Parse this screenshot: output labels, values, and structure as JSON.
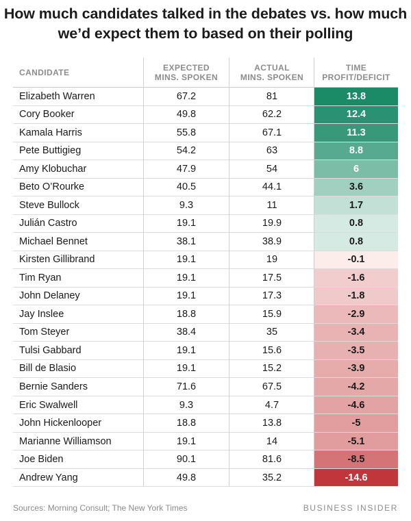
{
  "title": "How much candidates talked in the debates vs. how much we’d expect them to based on their polling",
  "source": "Sources: Morning Consult; The New York Times",
  "brand": "BUSINESS INSIDER",
  "columns": {
    "candidate": "CANDIDATE",
    "expected": [
      "EXPECTED",
      "MINS. SPOKEN"
    ],
    "actual": [
      "ACTUAL",
      "MINS. SPOKEN"
    ],
    "diff": [
      "TIME",
      "PROFIT/DEFICIT"
    ]
  },
  "colors": {
    "positive_strong": "#1a8a67",
    "positive_weak": "#eef7f3",
    "negative_weak": "#fdf1ef",
    "negative_strong": "#c0363b"
  },
  "chart_data": {
    "type": "table",
    "title": "How much candidates talked in the debates vs. how much we’d expect them to based on their polling",
    "columns": [
      "CANDIDATE",
      "EXPECTED MINS. SPOKEN",
      "ACTUAL MINS. SPOKEN",
      "TIME PROFIT/DEFICIT"
    ],
    "rows": [
      {
        "candidate": "Elizabeth Warren",
        "expected": "67.2",
        "actual": "81",
        "diff": "13.8"
      },
      {
        "candidate": "Cory Booker",
        "expected": "49.8",
        "actual": "62.2",
        "diff": "12.4"
      },
      {
        "candidate": "Kamala Harris",
        "expected": "55.8",
        "actual": "67.1",
        "diff": "11.3"
      },
      {
        "candidate": "Pete Buttigieg",
        "expected": "54.2",
        "actual": "63",
        "diff": "8.8"
      },
      {
        "candidate": "Amy Klobuchar",
        "expected": "47.9",
        "actual": "54",
        "diff": "6"
      },
      {
        "candidate": "Beto O’Rourke",
        "expected": "40.5",
        "actual": "44.1",
        "diff": "3.6"
      },
      {
        "candidate": "Steve Bullock",
        "expected": "9.3",
        "actual": "11",
        "diff": "1.7"
      },
      {
        "candidate": "Julián Castro",
        "expected": "19.1",
        "actual": "19.9",
        "diff": "0.8"
      },
      {
        "candidate": "Michael Bennet",
        "expected": "38.1",
        "actual": "38.9",
        "diff": "0.8"
      },
      {
        "candidate": "Kirsten Gillibrand",
        "expected": "19.1",
        "actual": "19",
        "diff": "-0.1"
      },
      {
        "candidate": "Tim Ryan",
        "expected": "19.1",
        "actual": "17.5",
        "diff": "-1.6"
      },
      {
        "candidate": "John Delaney",
        "expected": "19.1",
        "actual": "17.3",
        "diff": "-1.8"
      },
      {
        "candidate": "Jay Inslee",
        "expected": "18.8",
        "actual": "15.9",
        "diff": "-2.9"
      },
      {
        "candidate": "Tom Steyer",
        "expected": "38.4",
        "actual": "35",
        "diff": "-3.4"
      },
      {
        "candidate": "Tulsi Gabbard",
        "expected": "19.1",
        "actual": "15.6",
        "diff": "-3.5"
      },
      {
        "candidate": "Bill de Blasio",
        "expected": "19.1",
        "actual": "15.2",
        "diff": "-3.9"
      },
      {
        "candidate": "Bernie Sanders",
        "expected": "71.6",
        "actual": "67.5",
        "diff": "-4.2"
      },
      {
        "candidate": "Eric Swalwell",
        "expected": "9.3",
        "actual": "4.7",
        "diff": "-4.6"
      },
      {
        "candidate": "John Hickenlooper",
        "expected": "18.8",
        "actual": "13.8",
        "diff": "-5"
      },
      {
        "candidate": "Marianne Williamson",
        "expected": "19.1",
        "actual": "14",
        "diff": "-5.1"
      },
      {
        "candidate": "Joe Biden",
        "expected": "90.1",
        "actual": "81.6",
        "diff": "-8.5"
      },
      {
        "candidate": "Andrew Yang",
        "expected": "49.8",
        "actual": "35.2",
        "diff": "-14.6"
      }
    ]
  }
}
